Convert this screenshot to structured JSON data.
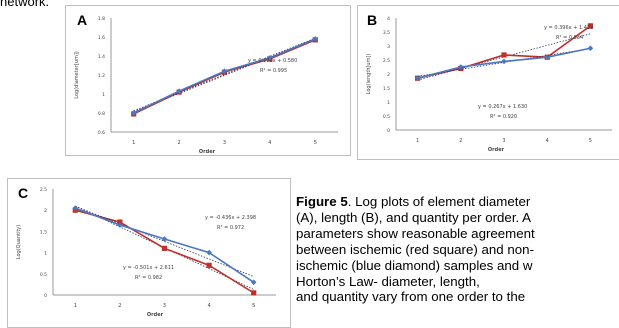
{
  "fragment": "network.",
  "panels": {
    "A": {
      "letter": "A"
    },
    "B": {
      "letter": "B"
    },
    "C": {
      "letter": "C"
    }
  },
  "caption": {
    "head": "Figure 5",
    "lines": [
      ". Log plots of element diameter",
      "(A), length (B), and quantity per order. A",
      "parameters show reasonable agreement",
      "between ischemic (red square) and non-",
      "ischemic (blue diamond) samples and w",
      "Horton’s Law- diameter, length,",
      "and quantity vary from one order to the"
    ]
  },
  "colors": {
    "ischemic": "#c0302a",
    "non_ischemic": "#4a78c0",
    "trend": "#333366"
  },
  "chart_data": [
    {
      "panel": "A",
      "type": "line",
      "xlabel": "Order",
      "ylabel": "Log(diameter[um])",
      "categories": [
        1,
        2,
        3,
        4,
        5
      ],
      "ylim": [
        0.6,
        1.8
      ],
      "yticks": [
        "1.8",
        "1.6",
        "1.4",
        "1.2",
        "1",
        "0.8",
        "0.6"
      ],
      "series": [
        {
          "color": "#c0302a",
          "marker": "square",
          "values": [
            0.79,
            1.02,
            1.23,
            1.37,
            1.57
          ]
        },
        {
          "color": "#4a78c0",
          "marker": "diamond",
          "values": [
            0.8,
            1.03,
            1.24,
            1.38,
            1.58
          ]
        }
      ],
      "annotations": [
        "y = 0.192x + 0.580",
        "R² = 0.995"
      ]
    },
    {
      "panel": "B",
      "type": "line",
      "xlabel": "Order",
      "ylabel": "Log(length[um])",
      "categories": [
        1,
        2,
        3,
        4,
        5
      ],
      "ylim": [
        0,
        4
      ],
      "yticks": [
        "4",
        "3.5",
        "3",
        "2.5",
        "2",
        "1.5",
        "1",
        "0.5",
        "0"
      ],
      "series": [
        {
          "color": "#c0302a",
          "marker": "square",
          "values": [
            1.85,
            2.2,
            2.68,
            2.6,
            3.72
          ]
        },
        {
          "color": "#4a78c0",
          "marker": "diamond",
          "values": [
            1.85,
            2.25,
            2.45,
            2.6,
            2.92
          ]
        }
      ],
      "annotations": [
        "y = 0.396x + 1.422",
        "R² = 0.834",
        "y = 0.267x + 1.630",
        "R² = 0.920"
      ]
    },
    {
      "panel": "C",
      "type": "line",
      "xlabel": "Order",
      "ylabel": "Log(Quantity)",
      "categories": [
        1,
        2,
        3,
        4,
        5
      ],
      "ylim": [
        0,
        2.5
      ],
      "yticks": [
        "2.5",
        "2",
        "1.5",
        "1",
        "0.5",
        "0"
      ],
      "series": [
        {
          "color": "#c0302a",
          "marker": "square",
          "values": [
            2.0,
            1.72,
            1.1,
            0.7,
            0.05
          ]
        },
        {
          "color": "#4a78c0",
          "marker": "diamond",
          "values": [
            2.05,
            1.65,
            1.32,
            1.0,
            0.3
          ]
        }
      ],
      "annotations": [
        "y = -0.436x + 2.398",
        "R² = 0.972",
        "y = -0.501x + 2.611",
        "R² = 0.982"
      ]
    }
  ]
}
